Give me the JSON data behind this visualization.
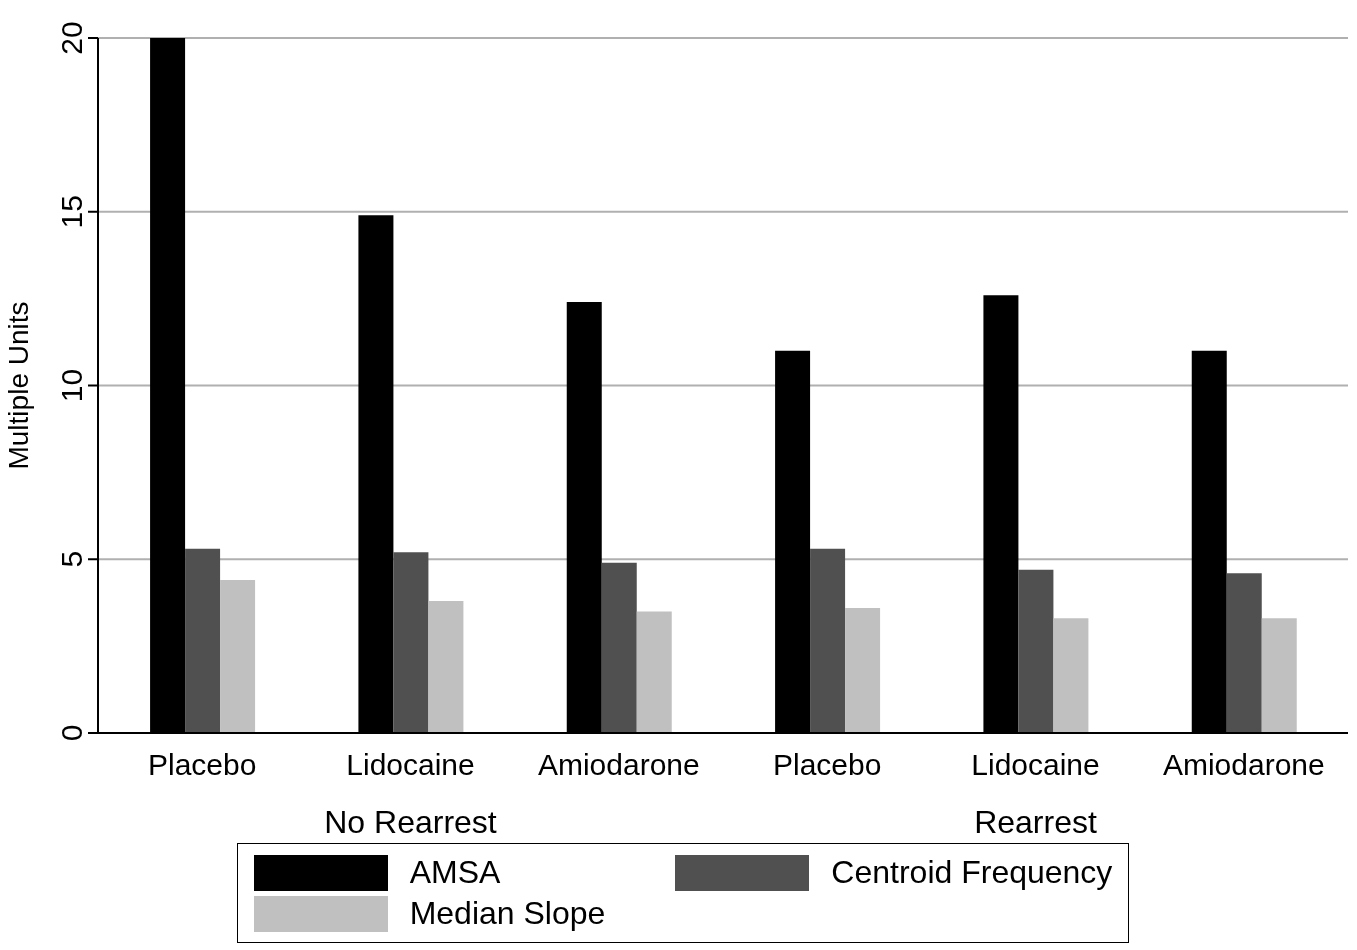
{
  "chart_data": {
    "type": "bar",
    "ylabel": "Multiple Units",
    "categories": [
      "Placebo",
      "Lidocaine",
      "Amiodarone",
      "Placebo",
      "Lidocaine",
      "Amiodarone"
    ],
    "series": [
      {
        "name": "AMSA",
        "color": "#000000",
        "values": [
          20.0,
          14.9,
          12.4,
          11.0,
          12.6,
          11.0
        ]
      },
      {
        "name": "Centroid Frequency",
        "color": "#505050",
        "values": [
          5.3,
          5.2,
          4.9,
          5.3,
          4.7,
          4.6
        ]
      },
      {
        "name": "Median Slope",
        "color": "#c0c0c0",
        "values": [
          4.4,
          3.8,
          3.5,
          3.6,
          3.3,
          3.3
        ]
      }
    ],
    "annotations": [
      "No Rearrest",
      "Rearrest"
    ],
    "ylim": [
      0,
      20
    ],
    "yticks": [
      0,
      5,
      10,
      15,
      20
    ],
    "grid": "y",
    "legend": "bottom"
  }
}
